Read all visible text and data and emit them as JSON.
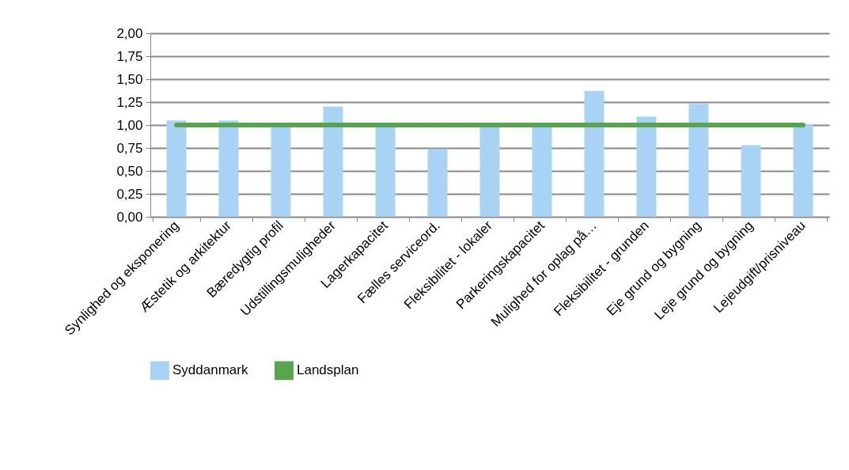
{
  "chart_data": {
    "type": "bar",
    "categories": [
      "Synlighed og eksponering",
      "Æstetik og arkitektur",
      "Bæredygtig profil",
      "Udstillingsmuligheder",
      "Lagerkapacitet",
      "Fælles serviceord.",
      "Fleksibilitet - lokaler",
      "Parkeringskapacitet",
      "Mulighed for oplag på…",
      "Fleksibilitet - grunden",
      "Eje grund og bygning",
      "Leje grund og bygning",
      "Lejeudgift/prisniveau"
    ],
    "series": [
      {
        "name": "Syddanmark",
        "color": "#a9d3f4",
        "values": [
          1.05,
          1.05,
          1.0,
          1.2,
          1.0,
          0.74,
          1.0,
          1.0,
          1.37,
          1.09,
          1.23,
          0.78,
          1.0
        ]
      },
      {
        "name": "Landsplan",
        "type": "line",
        "color": "#57a54d",
        "values": [
          1.0,
          1.0,
          1.0,
          1.0,
          1.0,
          1.0,
          1.0,
          1.0,
          1.0,
          1.0,
          1.0,
          1.0,
          1.0
        ]
      }
    ],
    "ylim": [
      0,
      2
    ],
    "yticks": [
      {
        "value": 0,
        "label": "0,00"
      },
      {
        "value": 0.25,
        "label": "0,25"
      },
      {
        "value": 0.5,
        "label": "0,50"
      },
      {
        "value": 0.75,
        "label": "0,75"
      },
      {
        "value": 1,
        "label": "1,00"
      },
      {
        "value": 1.25,
        "label": "1,25"
      },
      {
        "value": 1.5,
        "label": "1,50"
      },
      {
        "value": 1.75,
        "label": "1,75"
      },
      {
        "value": 2,
        "label": "2,00"
      }
    ],
    "grid": "y",
    "legend": "bottom"
  }
}
